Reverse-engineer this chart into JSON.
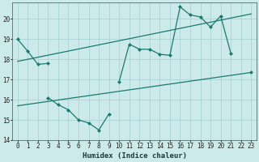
{
  "xlabel": "Humidex (Indice chaleur)",
  "bg_color": "#cceaea",
  "line_color": "#1a7a6e",
  "x_values": [
    0,
    1,
    2,
    3,
    4,
    5,
    6,
    7,
    8,
    9,
    10,
    11,
    12,
    13,
    14,
    15,
    16,
    17,
    18,
    19,
    20,
    21,
    22,
    23
  ],
  "line1": [
    19.0,
    18.4,
    17.75,
    17.8,
    null,
    null,
    null,
    null,
    null,
    null,
    null,
    null,
    null,
    null,
    null,
    null,
    null,
    null,
    null,
    null,
    null,
    null,
    null,
    null
  ],
  "line2": [
    null,
    null,
    null,
    16.1,
    15.75,
    15.5,
    15.0,
    14.85,
    14.5,
    15.3,
    null,
    null,
    null,
    null,
    null,
    null,
    null,
    null,
    null,
    null,
    null,
    null,
    null,
    null
  ],
  "line3": [
    null,
    null,
    null,
    null,
    null,
    null,
    null,
    null,
    null,
    null,
    16.9,
    18.75,
    18.5,
    18.5,
    18.25,
    18.2,
    20.6,
    20.2,
    20.1,
    19.6,
    20.15,
    18.3,
    null,
    17.35
  ],
  "trend1_x": [
    0,
    23
  ],
  "trend1_y": [
    17.9,
    20.25
  ],
  "trend2_x": [
    0,
    23
  ],
  "trend2_y": [
    15.7,
    17.35
  ],
  "ylim": [
    14,
    20.8
  ],
  "xlim": [
    -0.5,
    23.5
  ],
  "yticks": [
    14,
    15,
    16,
    17,
    18,
    19,
    20
  ],
  "xticks": [
    0,
    1,
    2,
    3,
    4,
    5,
    6,
    7,
    8,
    9,
    10,
    11,
    12,
    13,
    14,
    15,
    16,
    17,
    18,
    19,
    20,
    21,
    22,
    23
  ],
  "grid_color": "#aad4d4",
  "axis_fontsize": 6.5,
  "tick_fontsize": 5.5
}
